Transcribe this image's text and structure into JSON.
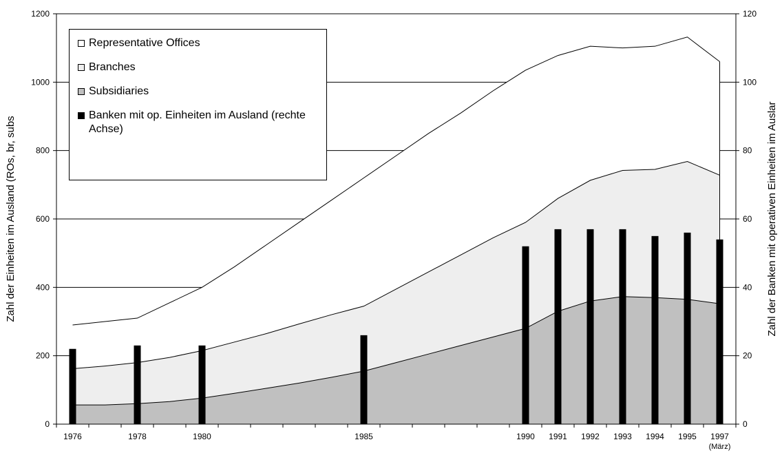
{
  "chart_data": {
    "type": "stacked_area_bar",
    "categories": [
      "1976",
      null,
      "1978",
      null,
      "1980",
      null,
      null,
      null,
      null,
      "1985",
      null,
      null,
      null,
      null,
      "1990",
      "1991",
      "1992",
      "1993",
      "1994",
      "1995",
      "1997"
    ],
    "x_annotation": "(März)",
    "y_label": "Zahl der Einheiten im Ausland (ROs, br, subs",
    "y2_label": "Zahl der Banken mit operativen Einheiten im Auslar",
    "ylim": [
      0,
      1200
    ],
    "yticks": [
      0,
      200,
      400,
      600,
      800,
      1000,
      1200
    ],
    "y2lim": [
      0,
      120
    ],
    "y2ticks": [
      0,
      20,
      40,
      60,
      80,
      100,
      120
    ],
    "grid": true,
    "legend": "upper left",
    "series": [
      {
        "name": "Representative Offices",
        "color": "#ffffff",
        "kind": "area",
        "values": [
          128,
          130,
          130,
          160,
          185,
          220,
          260,
          297,
          335,
          375,
          390,
          405,
          415,
          430,
          445,
          418,
          392,
          358,
          360,
          364,
          332
        ]
      },
      {
        "name": "Branches",
        "color": "#eeeeee",
        "kind": "area",
        "values": [
          106,
          114,
          120,
          129,
          139,
          150,
          160,
          173,
          183,
          190,
          215,
          240,
          265,
          290,
          310,
          330,
          353,
          369,
          375,
          403,
          376
        ]
      },
      {
        "name": "Subsidiaries",
        "color": "#c0c0c0",
        "kind": "area",
        "values": [
          56,
          56,
          60,
          66,
          76,
          90,
          105,
          120,
          137,
          155,
          180,
          205,
          230,
          255,
          280,
          330,
          360,
          373,
          370,
          365,
          352
        ]
      },
      {
        "name": "Banken mit op. Einheiten im Ausland (rechte Achse)",
        "color": "#000000",
        "kind": "bar",
        "axis": "y2",
        "values": [
          22,
          null,
          23,
          null,
          23,
          null,
          null,
          null,
          null,
          26,
          null,
          null,
          null,
          null,
          52,
          57,
          57,
          57,
          55,
          56,
          54
        ]
      }
    ]
  }
}
